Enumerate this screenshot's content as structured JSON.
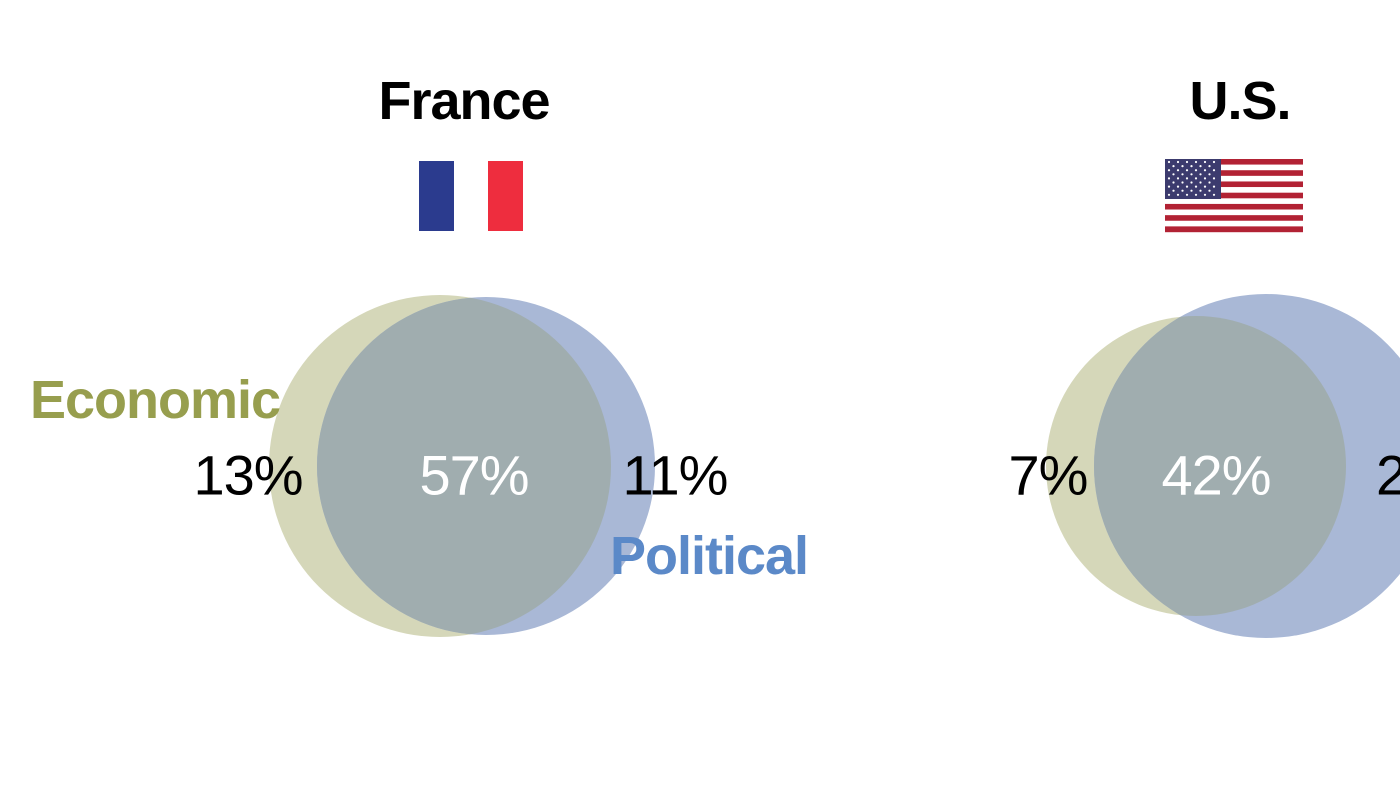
{
  "colors": {
    "economic": "#979e4e",
    "political": "#5b89c8",
    "economic_fill": "#d5d7b9",
    "political_fill": "#a9b8d6",
    "overlap_fill": "#a0adaf",
    "france_blue": "#2b3b8e",
    "france_red": "#ee2d3e",
    "us_red": "#b22234",
    "us_blue": "#3c3b6e"
  },
  "labels": {
    "economic": "Economic",
    "political": "Political"
  },
  "countries": [
    {
      "name": "France",
      "flag_icon": "france-flag-icon",
      "economic_only": "13%",
      "both": "57%",
      "political_only": "11%"
    },
    {
      "name": "U.S.",
      "flag_icon": "us-flag-icon",
      "economic_only": "7%",
      "both": "42%",
      "political_only": "2"
    }
  ]
}
